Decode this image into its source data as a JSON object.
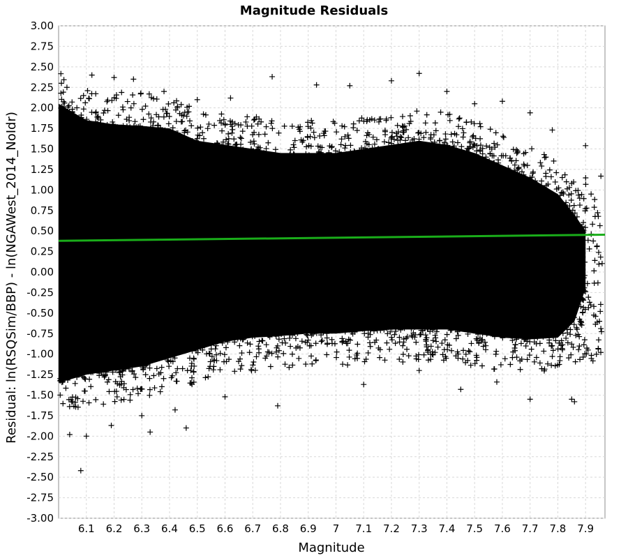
{
  "chart_data": {
    "type": "scatter",
    "title": "Magnitude Residuals",
    "xlabel": "Magnitude",
    "ylabel": "Residual: ln(RSQSim/BBP) - ln(NGAWest_2014_NoIdr)",
    "xlim": [
      6.0,
      7.97
    ],
    "ylim": [
      -3.0,
      3.0
    ],
    "grid": true,
    "legend": "none",
    "x_ticks": [
      "6.1",
      "6.2",
      "6.3",
      "6.4",
      "6.5",
      "6.6",
      "6.7",
      "6.8",
      "6.9",
      "7",
      "7.1",
      "7.2",
      "7.3",
      "7.4",
      "7.5",
      "7.6",
      "7.7",
      "7.8",
      "7.9"
    ],
    "y_ticks": [
      "3.00",
      "2.75",
      "2.50",
      "2.25",
      "2.00",
      "1.75",
      "1.50",
      "1.25",
      "1.00",
      "0.75",
      "0.50",
      "0.25",
      "0.00",
      "-0.25",
      "-0.50",
      "-0.75",
      "-1.00",
      "-1.25",
      "-1.50",
      "-1.75",
      "-2.00",
      "-2.25",
      "-2.50",
      "-2.75",
      "-3.00"
    ],
    "marker": "plus",
    "point_color": "#000000",
    "fit_line_color": "#1aad1a",
    "series": [
      {
        "kind": "points",
        "x": [
          6.0,
          6.01,
          6.03,
          6.05,
          6.08,
          6.12,
          6.2,
          6.27,
          6.33,
          6.38,
          6.42,
          6.5,
          6.62,
          6.77,
          6.93,
          7.05,
          7.2,
          7.3,
          7.4,
          7.5,
          7.6,
          7.7,
          7.78,
          7.85,
          7.9,
          7.95,
          6.04,
          6.1,
          6.19,
          6.3,
          6.46,
          6.6,
          6.79,
          7.1,
          7.3,
          7.45,
          7.58,
          7.7,
          7.86,
          7.92
        ],
        "y": [
          2.47,
          2.3,
          2.25,
          -1.58,
          -2.42,
          2.4,
          2.37,
          2.35,
          -1.95,
          2.2,
          -1.68,
          2.1,
          2.12,
          2.38,
          2.28,
          2.27,
          2.33,
          2.42,
          2.2,
          2.05,
          2.08,
          1.94,
          1.73,
          -1.55,
          1.54,
          -0.6,
          -1.98,
          -2.0,
          -1.87,
          -1.75,
          -1.9,
          -1.52,
          -1.63,
          -1.37,
          -1.2,
          -1.43,
          -1.34,
          -1.55,
          -1.58,
          0.95
        ]
      },
      {
        "kind": "fit_line",
        "x": [
          6.0,
          7.97
        ],
        "y": [
          0.38,
          0.455
        ]
      }
    ]
  }
}
